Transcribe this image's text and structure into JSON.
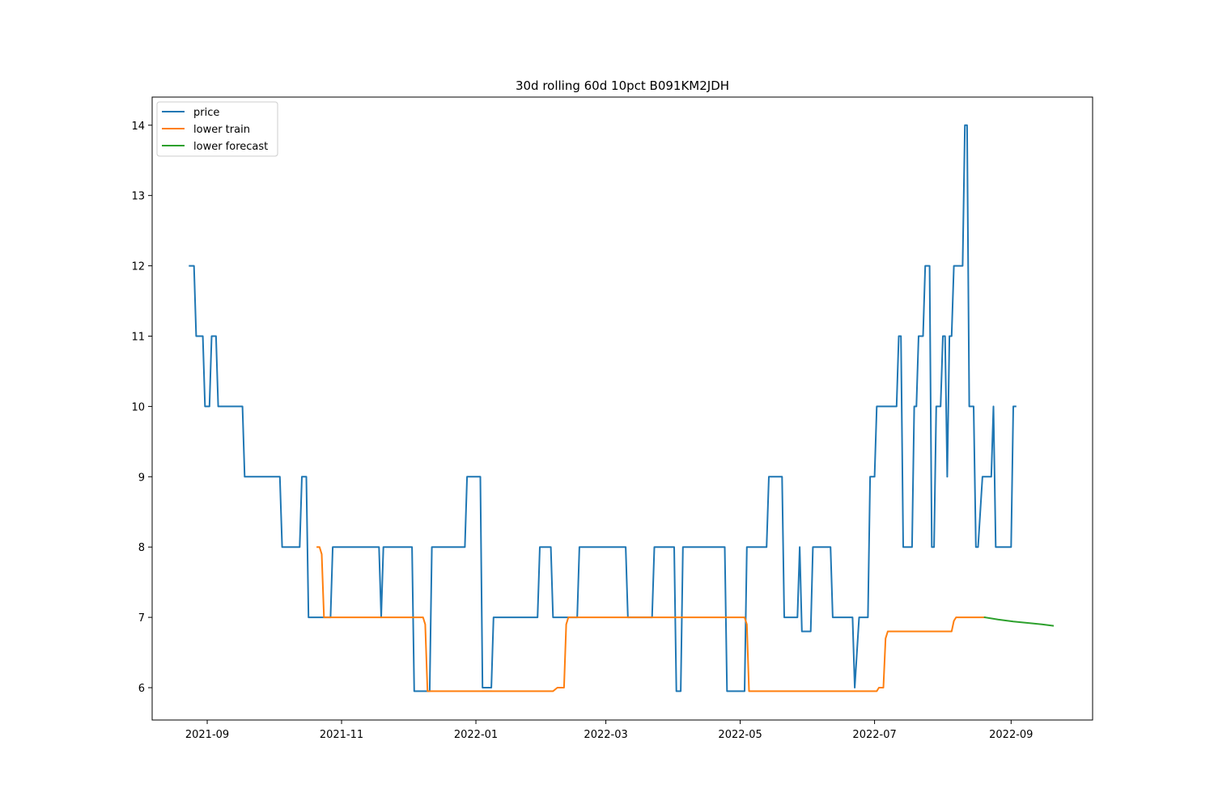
{
  "chart_data": {
    "type": "line",
    "title": "30d rolling 60d 10pct B091KM2JDH",
    "xlabel": "",
    "ylabel": "",
    "x_type": "date",
    "xlim": [
      "2021-08-07",
      "2022-10-08"
    ],
    "ylim": [
      5.54,
      14.4
    ],
    "x_ticks": [
      "2021-09-01",
      "2021-11-01",
      "2022-01-01",
      "2022-03-01",
      "2022-05-01",
      "2022-07-01",
      "2022-09-01"
    ],
    "x_tick_labels": [
      "2021-09",
      "2021-11",
      "2022-01",
      "2022-03",
      "2022-05",
      "2022-07",
      "2022-09"
    ],
    "y_ticks": [
      6,
      7,
      8,
      9,
      10,
      11,
      12,
      13,
      14
    ],
    "y_tick_labels": [
      "6",
      "7",
      "8",
      "9",
      "10",
      "11",
      "12",
      "13",
      "14"
    ],
    "grid": false,
    "legend": {
      "position": "top-left",
      "entries": [
        "price",
        "lower train",
        "lower forecast"
      ]
    },
    "series": [
      {
        "name": "price",
        "color": "#1f77b4",
        "points": [
          [
            "2021-08-24",
            12
          ],
          [
            "2021-08-26",
            12
          ],
          [
            "2021-08-27",
            11
          ],
          [
            "2021-08-30",
            11
          ],
          [
            "2021-08-31",
            10
          ],
          [
            "2021-09-02",
            10
          ],
          [
            "2021-09-03",
            11
          ],
          [
            "2021-09-05",
            11
          ],
          [
            "2021-09-06",
            10
          ],
          [
            "2021-09-17",
            10
          ],
          [
            "2021-09-18",
            9
          ],
          [
            "2021-10-04",
            9
          ],
          [
            "2021-10-05",
            8
          ],
          [
            "2021-10-13",
            8
          ],
          [
            "2021-10-14",
            9
          ],
          [
            "2021-10-16",
            9
          ],
          [
            "2021-10-17",
            7
          ],
          [
            "2021-10-27",
            7
          ],
          [
            "2021-10-28",
            8
          ],
          [
            "2021-11-18",
            8
          ],
          [
            "2021-11-19",
            7
          ],
          [
            "2021-11-20",
            8
          ],
          [
            "2021-12-03",
            8
          ],
          [
            "2021-12-04",
            5.95
          ],
          [
            "2021-12-11",
            5.95
          ],
          [
            "2021-12-12",
            8
          ],
          [
            "2021-12-27",
            8
          ],
          [
            "2021-12-28",
            9
          ],
          [
            "2022-01-03",
            9
          ],
          [
            "2022-01-04",
            6
          ],
          [
            "2022-01-08",
            6
          ],
          [
            "2022-01-09",
            7
          ],
          [
            "2022-01-29",
            7
          ],
          [
            "2022-01-30",
            8
          ],
          [
            "2022-02-04",
            8
          ],
          [
            "2022-02-05",
            7
          ],
          [
            "2022-02-16",
            7
          ],
          [
            "2022-02-17",
            8
          ],
          [
            "2022-03-10",
            8
          ],
          [
            "2022-03-11",
            7
          ],
          [
            "2022-03-22",
            7
          ],
          [
            "2022-03-23",
            8
          ],
          [
            "2022-04-01",
            8
          ],
          [
            "2022-04-02",
            5.95
          ],
          [
            "2022-04-04",
            5.95
          ],
          [
            "2022-04-05",
            8
          ],
          [
            "2022-04-24",
            8
          ],
          [
            "2022-04-25",
            5.95
          ],
          [
            "2022-05-03",
            5.95
          ],
          [
            "2022-05-04",
            8
          ],
          [
            "2022-05-13",
            8
          ],
          [
            "2022-05-14",
            9
          ],
          [
            "2022-05-20",
            9
          ],
          [
            "2022-05-21",
            7
          ],
          [
            "2022-05-27",
            7
          ],
          [
            "2022-05-28",
            8
          ],
          [
            "2022-05-29",
            6.8
          ],
          [
            "2022-06-02",
            6.8
          ],
          [
            "2022-06-03",
            8
          ],
          [
            "2022-06-11",
            8
          ],
          [
            "2022-06-12",
            7
          ],
          [
            "2022-06-21",
            7
          ],
          [
            "2022-06-22",
            6
          ],
          [
            "2022-06-24",
            7
          ],
          [
            "2022-06-28",
            7
          ],
          [
            "2022-06-29",
            9
          ],
          [
            "2022-07-01",
            9
          ],
          [
            "2022-07-02",
            10
          ],
          [
            "2022-07-11",
            10
          ],
          [
            "2022-07-12",
            11
          ],
          [
            "2022-07-13",
            11
          ],
          [
            "2022-07-14",
            8
          ],
          [
            "2022-07-18",
            8
          ],
          [
            "2022-07-19",
            10
          ],
          [
            "2022-07-20",
            10
          ],
          [
            "2022-07-21",
            11
          ],
          [
            "2022-07-23",
            11
          ],
          [
            "2022-07-24",
            12
          ],
          [
            "2022-07-26",
            12
          ],
          [
            "2022-07-27",
            8
          ],
          [
            "2022-07-28",
            8
          ],
          [
            "2022-07-29",
            10
          ],
          [
            "2022-07-31",
            10
          ],
          [
            "2022-08-01",
            11
          ],
          [
            "2022-08-02",
            11
          ],
          [
            "2022-08-03",
            9
          ],
          [
            "2022-08-04",
            11
          ],
          [
            "2022-08-05",
            11
          ],
          [
            "2022-08-06",
            12
          ],
          [
            "2022-08-10",
            12
          ],
          [
            "2022-08-11",
            14
          ],
          [
            "2022-08-12",
            14
          ],
          [
            "2022-08-13",
            10
          ],
          [
            "2022-08-15",
            10
          ],
          [
            "2022-08-16",
            8
          ],
          [
            "2022-08-17",
            8
          ],
          [
            "2022-08-19",
            9
          ],
          [
            "2022-08-23",
            9
          ],
          [
            "2022-08-24",
            10
          ],
          [
            "2022-08-25",
            8
          ],
          [
            "2022-09-01",
            8
          ],
          [
            "2022-09-02",
            10
          ],
          [
            "2022-09-03",
            10
          ]
        ]
      },
      {
        "name": "lower train",
        "color": "#ff7f0e",
        "points": [
          [
            "2021-10-21",
            8
          ],
          [
            "2021-10-22",
            8
          ],
          [
            "2021-10-23",
            7.9
          ],
          [
            "2021-10-24",
            7
          ],
          [
            "2021-12-08",
            7
          ],
          [
            "2021-12-09",
            6.9
          ],
          [
            "2021-12-10",
            5.95
          ],
          [
            "2022-02-05",
            5.95
          ],
          [
            "2022-02-07",
            6
          ],
          [
            "2022-02-10",
            6
          ],
          [
            "2022-02-11",
            6.9
          ],
          [
            "2022-02-12",
            7
          ],
          [
            "2022-05-03",
            7
          ],
          [
            "2022-05-04",
            6.9
          ],
          [
            "2022-05-05",
            5.95
          ],
          [
            "2022-07-02",
            5.95
          ],
          [
            "2022-07-03",
            6
          ],
          [
            "2022-07-05",
            6
          ],
          [
            "2022-07-06",
            6.7
          ],
          [
            "2022-07-07",
            6.8
          ],
          [
            "2022-08-05",
            6.8
          ],
          [
            "2022-08-06",
            6.95
          ],
          [
            "2022-08-07",
            7
          ],
          [
            "2022-08-20",
            7
          ]
        ]
      },
      {
        "name": "lower forecast",
        "color": "#2ca02c",
        "points": [
          [
            "2022-08-20",
            7
          ],
          [
            "2022-08-26",
            6.97
          ],
          [
            "2022-09-02",
            6.94
          ],
          [
            "2022-09-09",
            6.92
          ],
          [
            "2022-09-15",
            6.9
          ],
          [
            "2022-09-20",
            6.88
          ]
        ]
      }
    ]
  }
}
